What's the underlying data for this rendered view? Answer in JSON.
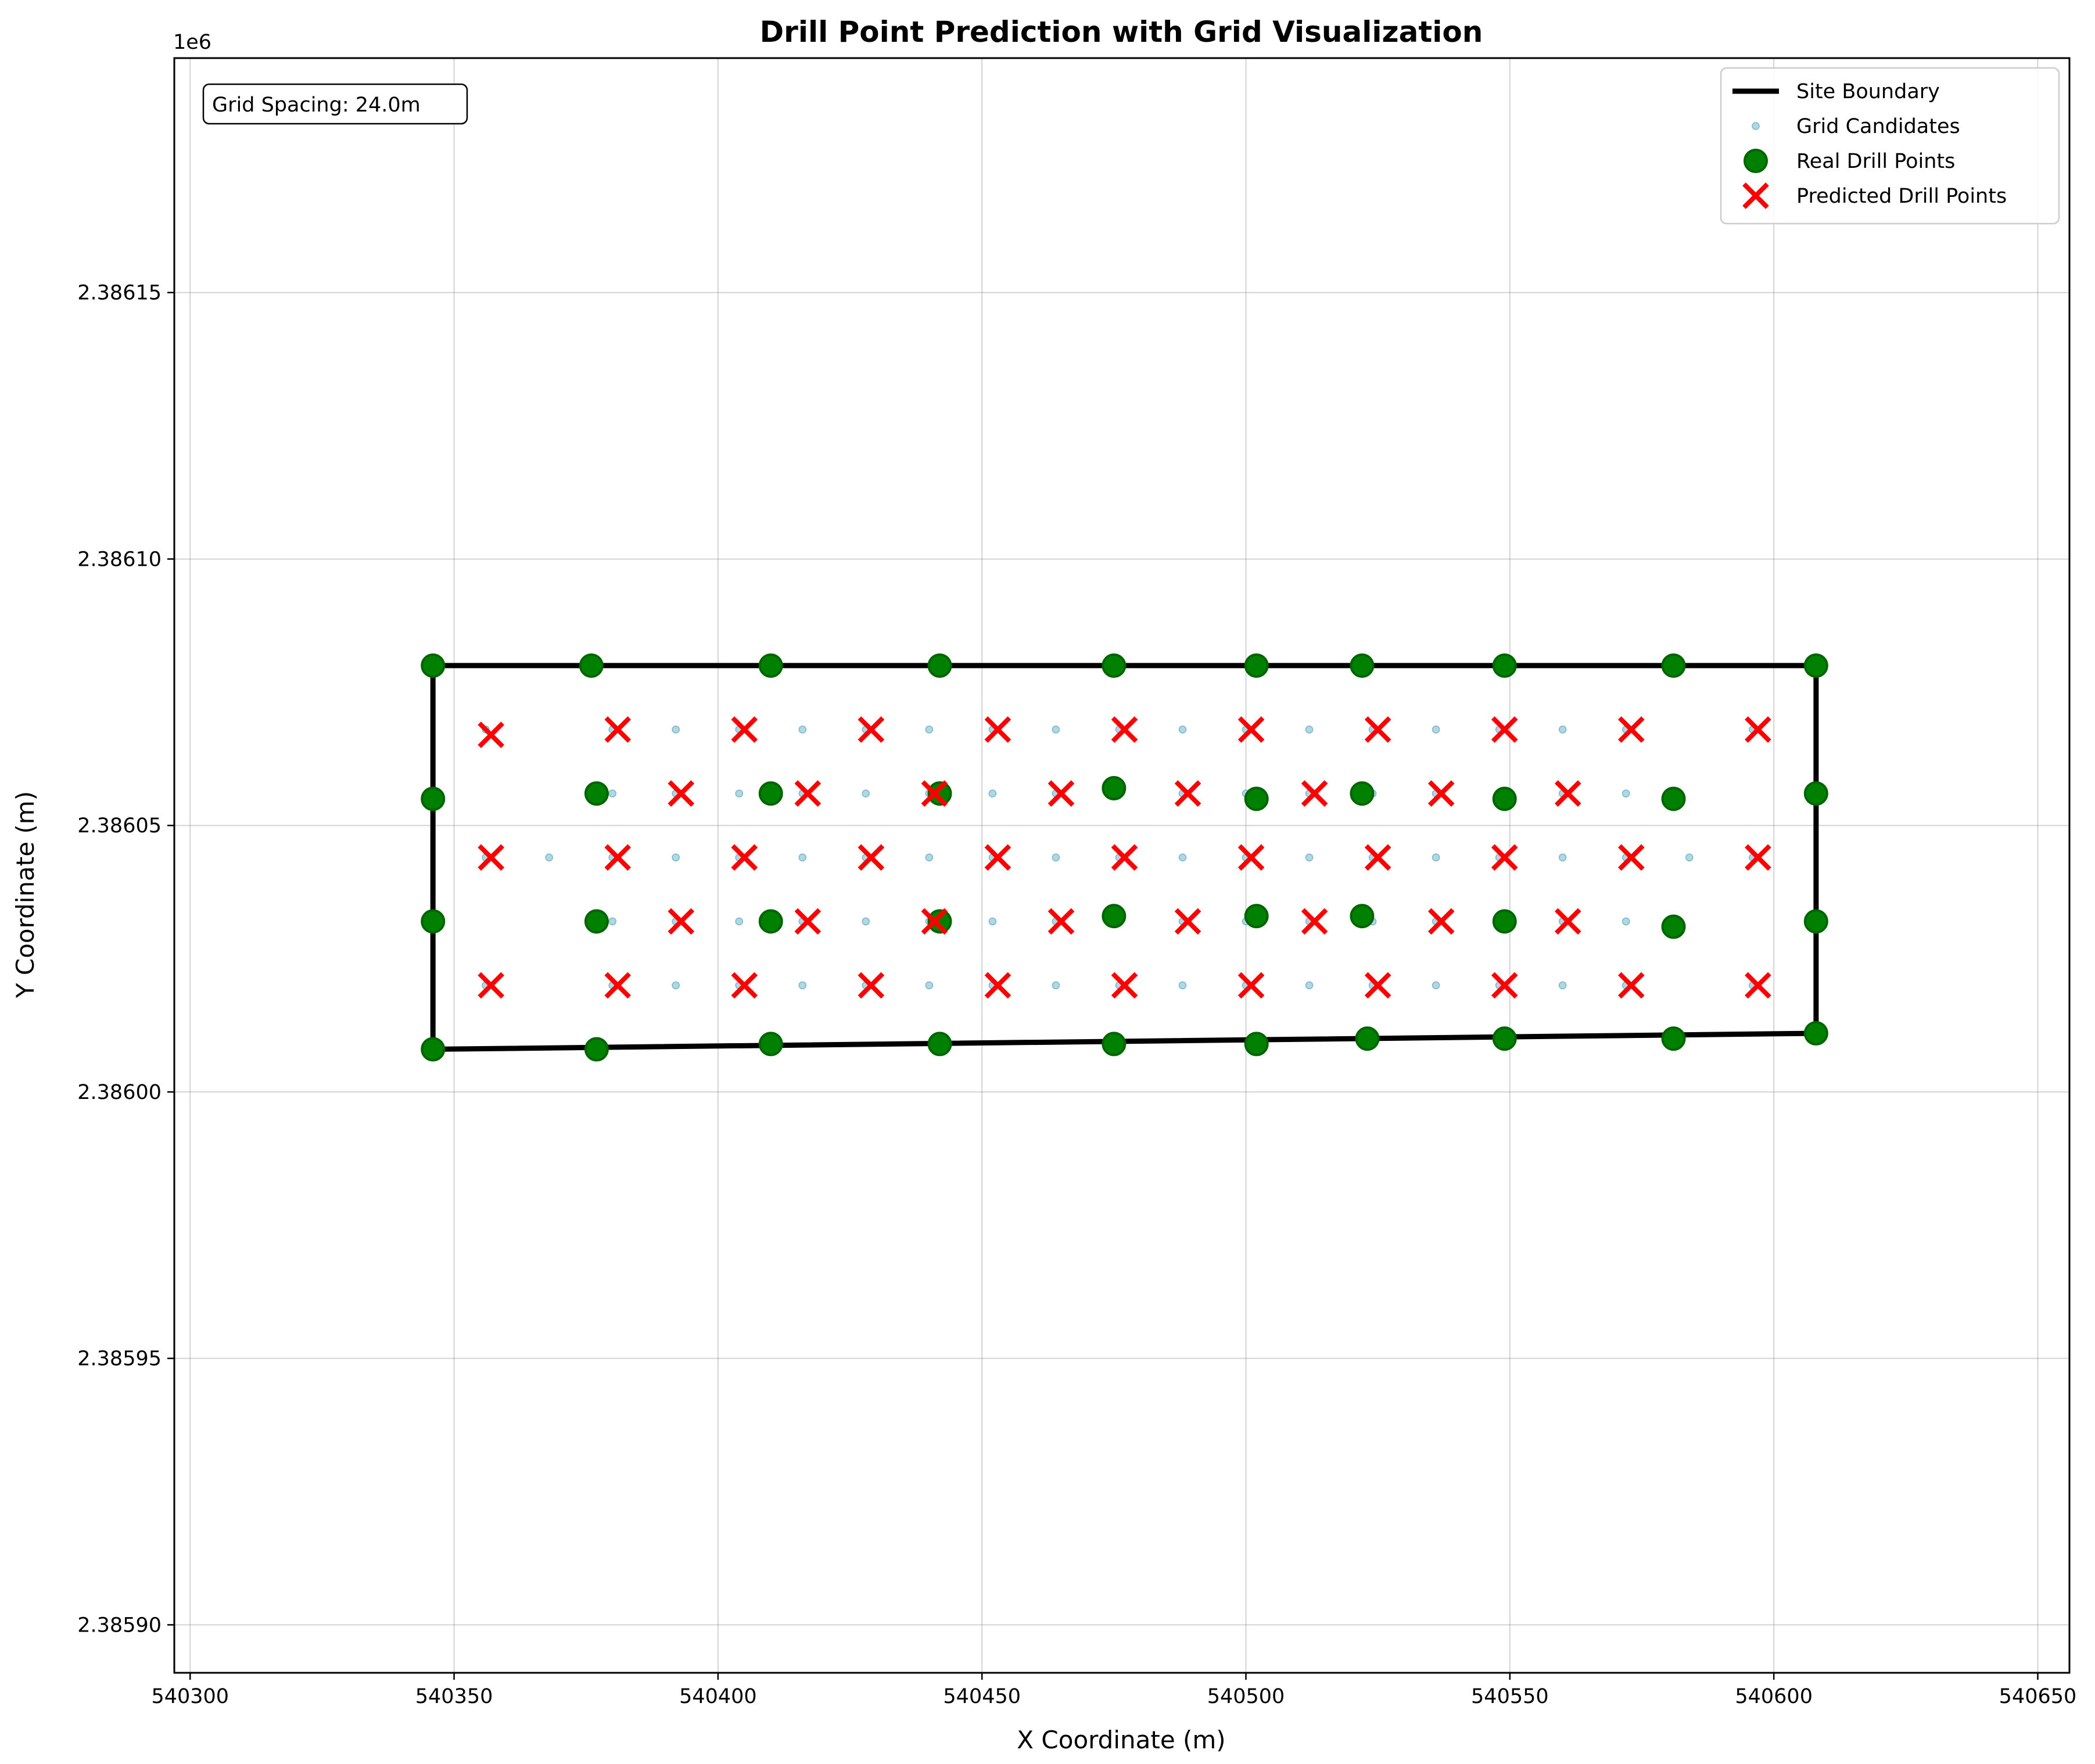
{
  "chart_data": {
    "type": "scatter",
    "title": "Drill Point Prediction with Grid Visualization",
    "xlabel": "X Coordinate (m)",
    "ylabel": "Y Coordinate (m)",
    "y_offset_label": "1e6",
    "xlim": [
      540297,
      540656
    ],
    "ylim": [
      2.385891,
      2.386194
    ],
    "x_ticks": [
      540300,
      540350,
      540400,
      540450,
      540500,
      540550,
      540600,
      540650
    ],
    "x_tick_labels": [
      "540300",
      "540350",
      "540400",
      "540450",
      "540500",
      "540550",
      "540600",
      "540650"
    ],
    "y_ticks": [
      2.3859,
      2.38595,
      2.386,
      2.38605,
      2.3861,
      2.38615
    ],
    "y_tick_labels": [
      "2.38590",
      "2.38595",
      "2.38600",
      "2.38605",
      "2.38610",
      "2.38615"
    ],
    "grid": true,
    "legend_position": "upper right",
    "annotation": "Grid Spacing: 24.0m",
    "colors": {
      "boundary": "#000000",
      "candidates": "#add8e6",
      "candidates_edge": "#7fb3c7",
      "real_fill": "#008000",
      "real_edge": "#006400",
      "predicted": "#ff0000",
      "grid_lines": "#808080"
    },
    "series": [
      {
        "name": "Site Boundary",
        "kind": "line",
        "points": [
          [
            540346,
            2.38608
          ],
          [
            540608,
            2.38608
          ],
          [
            540608,
            2.386011
          ],
          [
            540346,
            2.386008
          ],
          [
            540346,
            2.38608
          ]
        ]
      },
      {
        "name": "Grid Candidates",
        "kind": "small-dot",
        "points": [
          [
            540356,
            2.386068
          ],
          [
            540380,
            2.386068
          ],
          [
            540392,
            2.386068
          ],
          [
            540404,
            2.386068
          ],
          [
            540416,
            2.386068
          ],
          [
            540428,
            2.386068
          ],
          [
            540440,
            2.386068
          ],
          [
            540452,
            2.386068
          ],
          [
            540464,
            2.386068
          ],
          [
            540476,
            2.386068
          ],
          [
            540488,
            2.386068
          ],
          [
            540500,
            2.386068
          ],
          [
            540512,
            2.386068
          ],
          [
            540524,
            2.386068
          ],
          [
            540536,
            2.386068
          ],
          [
            540548,
            2.386068
          ],
          [
            540560,
            2.386068
          ],
          [
            540572,
            2.386068
          ],
          [
            540596,
            2.386068
          ],
          [
            540380,
            2.386056
          ],
          [
            540392,
            2.386056
          ],
          [
            540404,
            2.386056
          ],
          [
            540416,
            2.386056
          ],
          [
            540428,
            2.386056
          ],
          [
            540440,
            2.386056
          ],
          [
            540452,
            2.386056
          ],
          [
            540464,
            2.386056
          ],
          [
            540476,
            2.386056
          ],
          [
            540488,
            2.386056
          ],
          [
            540500,
            2.386056
          ],
          [
            540512,
            2.386056
          ],
          [
            540524,
            2.386056
          ],
          [
            540536,
            2.386056
          ],
          [
            540548,
            2.386056
          ],
          [
            540560,
            2.386056
          ],
          [
            540572,
            2.386056
          ],
          [
            540356,
            2.386044
          ],
          [
            540368,
            2.386044
          ],
          [
            540380,
            2.386044
          ],
          [
            540392,
            2.386044
          ],
          [
            540404,
            2.386044
          ],
          [
            540416,
            2.386044
          ],
          [
            540428,
            2.386044
          ],
          [
            540440,
            2.386044
          ],
          [
            540452,
            2.386044
          ],
          [
            540464,
            2.386044
          ],
          [
            540476,
            2.386044
          ],
          [
            540488,
            2.386044
          ],
          [
            540500,
            2.386044
          ],
          [
            540512,
            2.386044
          ],
          [
            540524,
            2.386044
          ],
          [
            540536,
            2.386044
          ],
          [
            540548,
            2.386044
          ],
          [
            540560,
            2.386044
          ],
          [
            540572,
            2.386044
          ],
          [
            540584,
            2.386044
          ],
          [
            540596,
            2.386044
          ],
          [
            540380,
            2.386032
          ],
          [
            540392,
            2.386032
          ],
          [
            540404,
            2.386032
          ],
          [
            540416,
            2.386032
          ],
          [
            540428,
            2.386032
          ],
          [
            540440,
            2.386032
          ],
          [
            540452,
            2.386032
          ],
          [
            540464,
            2.386032
          ],
          [
            540476,
            2.386032
          ],
          [
            540488,
            2.386032
          ],
          [
            540500,
            2.386032
          ],
          [
            540512,
            2.386032
          ],
          [
            540524,
            2.386032
          ],
          [
            540536,
            2.386032
          ],
          [
            540548,
            2.386032
          ],
          [
            540560,
            2.386032
          ],
          [
            540572,
            2.386032
          ],
          [
            540356,
            2.38602
          ],
          [
            540380,
            2.38602
          ],
          [
            540392,
            2.38602
          ],
          [
            540404,
            2.38602
          ],
          [
            540416,
            2.38602
          ],
          [
            540428,
            2.38602
          ],
          [
            540440,
            2.38602
          ],
          [
            540452,
            2.38602
          ],
          [
            540464,
            2.38602
          ],
          [
            540476,
            2.38602
          ],
          [
            540488,
            2.38602
          ],
          [
            540500,
            2.38602
          ],
          [
            540512,
            2.38602
          ],
          [
            540524,
            2.38602
          ],
          [
            540536,
            2.38602
          ],
          [
            540548,
            2.38602
          ],
          [
            540560,
            2.38602
          ],
          [
            540572,
            2.38602
          ],
          [
            540596,
            2.38602
          ]
        ]
      },
      {
        "name": "Real Drill Points",
        "kind": "circle",
        "points": [
          [
            540346,
            2.38608
          ],
          [
            540376,
            2.38608
          ],
          [
            540410,
            2.38608
          ],
          [
            540442,
            2.38608
          ],
          [
            540475,
            2.38608
          ],
          [
            540502,
            2.38608
          ],
          [
            540522,
            2.38608
          ],
          [
            540549,
            2.38608
          ],
          [
            540581,
            2.38608
          ],
          [
            540608,
            2.38608
          ],
          [
            540346,
            2.386055
          ],
          [
            540377,
            2.386056
          ],
          [
            540410,
            2.386056
          ],
          [
            540442,
            2.386056
          ],
          [
            540475,
            2.386057
          ],
          [
            540502,
            2.386055
          ],
          [
            540522,
            2.386056
          ],
          [
            540549,
            2.386055
          ],
          [
            540581,
            2.386055
          ],
          [
            540608,
            2.386056
          ],
          [
            540346,
            2.386032
          ],
          [
            540377,
            2.386032
          ],
          [
            540410,
            2.386032
          ],
          [
            540442,
            2.386032
          ],
          [
            540475,
            2.386033
          ],
          [
            540502,
            2.386033
          ],
          [
            540522,
            2.386033
          ],
          [
            540549,
            2.386032
          ],
          [
            540581,
            2.386031
          ],
          [
            540608,
            2.386032
          ],
          [
            540346,
            2.386008
          ],
          [
            540377,
            2.386008
          ],
          [
            540410,
            2.386009
          ],
          [
            540442,
            2.386009
          ],
          [
            540475,
            2.386009
          ],
          [
            540502,
            2.386009
          ],
          [
            540523,
            2.38601
          ],
          [
            540549,
            2.38601
          ],
          [
            540581,
            2.38601
          ],
          [
            540608,
            2.386011
          ]
        ]
      },
      {
        "name": "Predicted Drill Points",
        "kind": "x",
        "points": [
          [
            540357,
            2.386067
          ],
          [
            540381,
            2.386068
          ],
          [
            540405,
            2.386068
          ],
          [
            540429,
            2.386068
          ],
          [
            540453,
            2.386068
          ],
          [
            540477,
            2.386068
          ],
          [
            540501,
            2.386068
          ],
          [
            540525,
            2.386068
          ],
          [
            540549,
            2.386068
          ],
          [
            540573,
            2.386068
          ],
          [
            540597,
            2.386068
          ],
          [
            540393,
            2.386056
          ],
          [
            540417,
            2.386056
          ],
          [
            540441,
            2.386056
          ],
          [
            540465,
            2.386056
          ],
          [
            540489,
            2.386056
          ],
          [
            540513,
            2.386056
          ],
          [
            540537,
            2.386056
          ],
          [
            540561,
            2.386056
          ],
          [
            540357,
            2.386044
          ],
          [
            540381,
            2.386044
          ],
          [
            540405,
            2.386044
          ],
          [
            540429,
            2.386044
          ],
          [
            540453,
            2.386044
          ],
          [
            540477,
            2.386044
          ],
          [
            540501,
            2.386044
          ],
          [
            540525,
            2.386044
          ],
          [
            540549,
            2.386044
          ],
          [
            540573,
            2.386044
          ],
          [
            540597,
            2.386044
          ],
          [
            540393,
            2.386032
          ],
          [
            540417,
            2.386032
          ],
          [
            540441,
            2.386032
          ],
          [
            540465,
            2.386032
          ],
          [
            540489,
            2.386032
          ],
          [
            540513,
            2.386032
          ],
          [
            540537,
            2.386032
          ],
          [
            540561,
            2.386032
          ],
          [
            540357,
            2.38602
          ],
          [
            540381,
            2.38602
          ],
          [
            540405,
            2.38602
          ],
          [
            540429,
            2.38602
          ],
          [
            540453,
            2.38602
          ],
          [
            540477,
            2.38602
          ],
          [
            540501,
            2.38602
          ],
          [
            540525,
            2.38602
          ],
          [
            540549,
            2.38602
          ],
          [
            540573,
            2.38602
          ],
          [
            540597,
            2.38602
          ]
        ]
      }
    ]
  }
}
